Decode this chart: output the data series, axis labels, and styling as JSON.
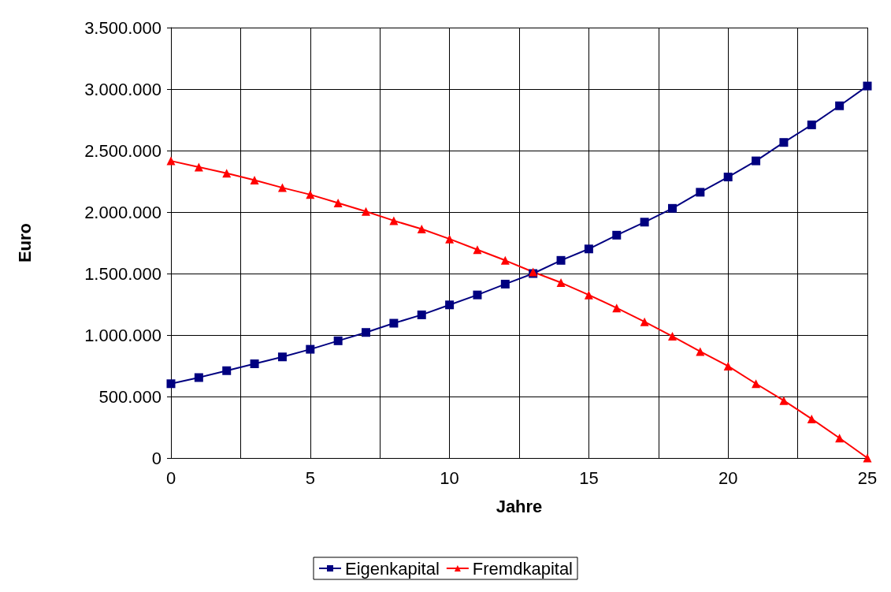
{
  "chart_data": {
    "type": "line",
    "xlabel": "Jahre",
    "ylabel": "Euro",
    "x": [
      0,
      1,
      2,
      3,
      4,
      5,
      6,
      7,
      8,
      9,
      10,
      11,
      12,
      13,
      14,
      15,
      16,
      17,
      18,
      19,
      20,
      21,
      22,
      23,
      24,
      25
    ],
    "series": [
      {
        "name": "Eigenkapital",
        "color": "#000080",
        "marker": "square",
        "values": [
          604000,
          654000,
          710000,
          766000,
          822000,
          884000,
          953000,
          1021000,
          1096000,
          1164000,
          1245000,
          1326000,
          1414000,
          1500000,
          1607000,
          1700000,
          1812000,
          1918000,
          2030000,
          2161000,
          2285000,
          2416000,
          2566000,
          2709000,
          2864000,
          3025000
        ]
      },
      {
        "name": "Fremdkapital",
        "color": "#ff0000",
        "marker": "triangle",
        "values": [
          2416000,
          2366000,
          2316000,
          2260000,
          2198000,
          2142000,
          2074000,
          2005000,
          1930000,
          1862000,
          1781000,
          1694000,
          1607000,
          1513000,
          1426000,
          1326000,
          1220000,
          1108000,
          990000,
          866000,
          747000,
          604000,
          467000,
          318000,
          162000,
          0
        ]
      }
    ],
    "xlim": [
      0,
      25
    ],
    "xticks": [
      0,
      {
        "value": 2.5,
        "label": null
      },
      5,
      {
        "value": 7.5,
        "label": null
      },
      10,
      {
        "value": 12.5,
        "label": null
      },
      15,
      {
        "value": 17.5,
        "label": null
      },
      20,
      {
        "value": 22.5,
        "label": null
      },
      25
    ],
    "ylim": [
      0,
      3500000
    ],
    "yticks": [
      0,
      {
        "value": 500000,
        "label": "500.000"
      },
      {
        "value": 1000000,
        "label": "1.000.000"
      },
      {
        "value": 1500000,
        "label": "1.500.000"
      },
      {
        "value": 2000000,
        "label": "2.000.000"
      },
      {
        "value": 2500000,
        "label": "2.500.000"
      },
      {
        "value": 3000000,
        "label": "3.000.000"
      },
      {
        "value": 3500000,
        "label": "3.500.000"
      }
    ],
    "grid": true,
    "legend": "bottom",
    "line_style": "solid"
  }
}
